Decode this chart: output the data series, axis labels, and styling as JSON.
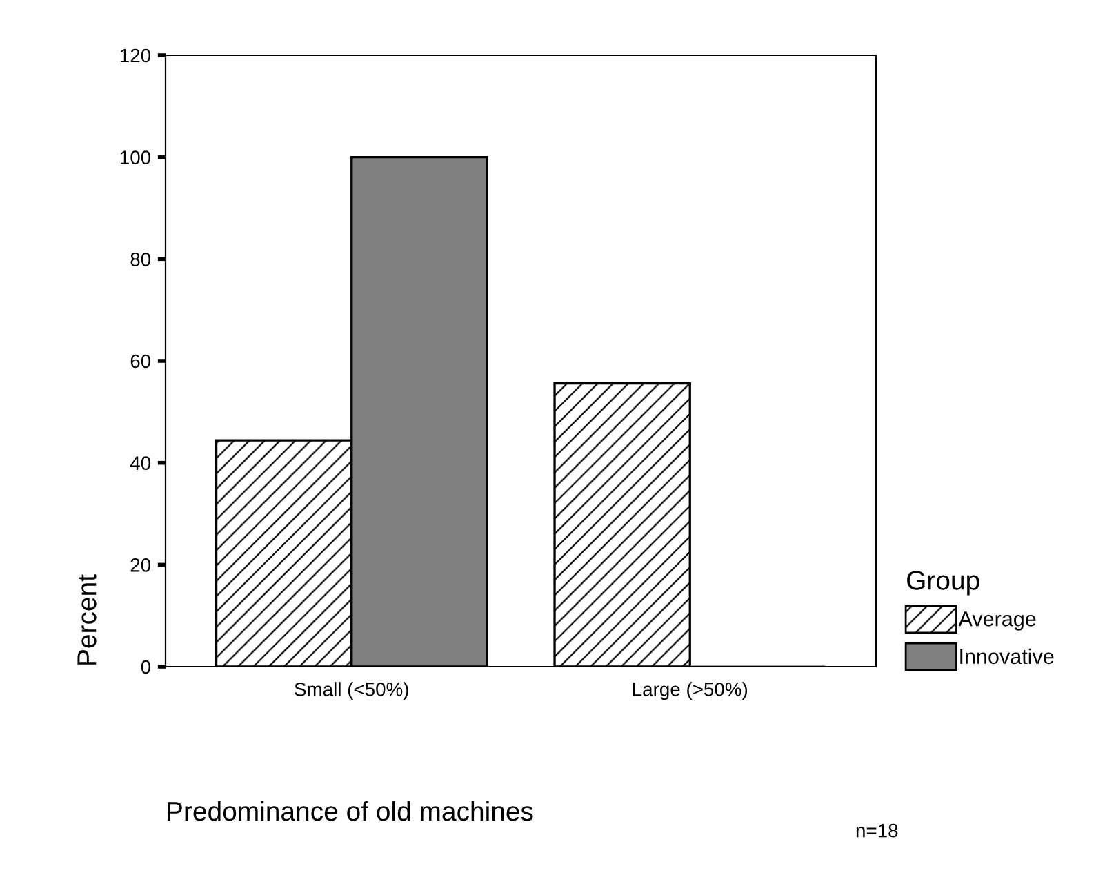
{
  "chart_data": {
    "type": "bar",
    "xlabel": "Predominance of old machines",
    "ylabel": "Percent",
    "legend_title": "Group",
    "categories": [
      "Small (<50%)",
      "Large (>50%)"
    ],
    "series": [
      {
        "name": "Average",
        "color": "#ffffff",
        "values": [
          44.4,
          55.6
        ]
      },
      {
        "name": "Innovative",
        "color": "#808080",
        "values": [
          100,
          0
        ]
      }
    ],
    "ylim": [
      0,
      120
    ],
    "yticks": [
      0,
      20,
      40,
      60,
      80,
      100,
      120
    ],
    "grid": false,
    "legend": "right",
    "annotations": [
      "n=18"
    ]
  }
}
